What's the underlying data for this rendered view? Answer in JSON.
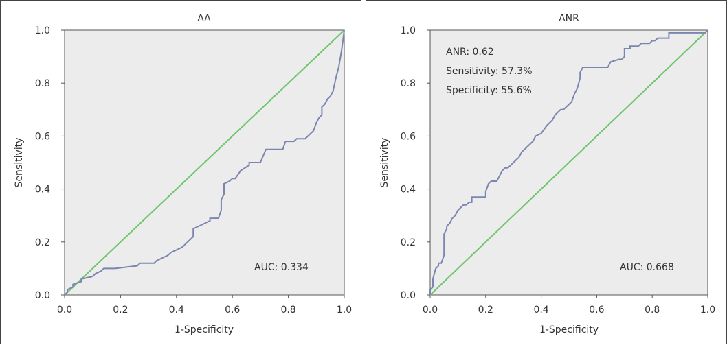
{
  "chart_data": [
    {
      "type": "line",
      "title": "AA",
      "xlabel": "1-Specificity",
      "ylabel": "Sensitivity",
      "xlim": [
        0,
        1
      ],
      "ylim": [
        0,
        1
      ],
      "xticks": [
        "0.0",
        "0.2",
        "0.4",
        "0.6",
        "0.8",
        "1.0"
      ],
      "yticks": [
        "0.0",
        "0.2",
        "0.4",
        "0.6",
        "0.8",
        "1.0"
      ],
      "grid": false,
      "annotations": [
        "AUC: 0.334"
      ],
      "series": [
        {
          "name": "ROC curve",
          "color": "#7a86b0",
          "x": [
            0.0,
            0.01,
            0.01,
            0.03,
            0.03,
            0.06,
            0.06,
            0.1,
            0.11,
            0.13,
            0.14,
            0.17,
            0.18,
            0.26,
            0.27,
            0.32,
            0.33,
            0.35,
            0.37,
            0.38,
            0.4,
            0.42,
            0.43,
            0.44,
            0.45,
            0.46,
            0.46,
            0.48,
            0.52,
            0.52,
            0.55,
            0.56,
            0.56,
            0.57,
            0.57,
            0.59,
            0.6,
            0.61,
            0.63,
            0.66,
            0.66,
            0.7,
            0.72,
            0.72,
            0.78,
            0.79,
            0.82,
            0.83,
            0.86,
            0.87,
            0.88,
            0.89,
            0.9,
            0.91,
            0.92,
            0.92,
            0.93,
            0.94,
            0.95,
            0.96,
            0.97,
            0.97,
            0.98,
            0.99,
            1.0
          ],
          "y": [
            0.0,
            0.01,
            0.02,
            0.03,
            0.04,
            0.05,
            0.06,
            0.07,
            0.08,
            0.09,
            0.1,
            0.1,
            0.1,
            0.11,
            0.12,
            0.12,
            0.13,
            0.14,
            0.15,
            0.16,
            0.17,
            0.18,
            0.19,
            0.2,
            0.21,
            0.22,
            0.25,
            0.26,
            0.28,
            0.29,
            0.29,
            0.32,
            0.36,
            0.38,
            0.42,
            0.43,
            0.44,
            0.44,
            0.47,
            0.49,
            0.5,
            0.5,
            0.55,
            0.55,
            0.55,
            0.58,
            0.58,
            0.59,
            0.59,
            0.6,
            0.61,
            0.62,
            0.65,
            0.67,
            0.68,
            0.71,
            0.72,
            0.74,
            0.75,
            0.77,
            0.82,
            0.82,
            0.86,
            0.92,
            1.0
          ]
        },
        {
          "name": "Reference line",
          "color": "#6cc56c",
          "x": [
            0,
            1
          ],
          "y": [
            0,
            1
          ]
        }
      ]
    },
    {
      "type": "line",
      "title": "ANR",
      "xlabel": "1-Specificity",
      "ylabel": "Sensitivity",
      "xlim": [
        0,
        1
      ],
      "ylim": [
        0,
        1
      ],
      "xticks": [
        "0.0",
        "0.2",
        "0.4",
        "0.6",
        "0.8",
        "1.0"
      ],
      "yticks": [
        "0.0",
        "0.2",
        "0.4",
        "0.6",
        "0.8",
        "1.0"
      ],
      "grid": false,
      "annotations": [
        "ANR: 0.62",
        "Sensitivity: 57.3%",
        "Specificity: 55.6%",
        "AUC: 0.668"
      ],
      "series": [
        {
          "name": "ROC curve",
          "color": "#7a86b0",
          "x": [
            0.0,
            0.0,
            0.01,
            0.01,
            0.02,
            0.03,
            0.03,
            0.04,
            0.05,
            0.05,
            0.06,
            0.06,
            0.07,
            0.08,
            0.09,
            0.1,
            0.11,
            0.12,
            0.13,
            0.14,
            0.15,
            0.15,
            0.2,
            0.2,
            0.21,
            0.22,
            0.24,
            0.25,
            0.26,
            0.27,
            0.28,
            0.3,
            0.31,
            0.32,
            0.33,
            0.34,
            0.36,
            0.37,
            0.38,
            0.4,
            0.42,
            0.42,
            0.44,
            0.45,
            0.46,
            0.47,
            0.48,
            0.5,
            0.51,
            0.52,
            0.53,
            0.54,
            0.54,
            0.55,
            0.56,
            0.64,
            0.65,
            0.68,
            0.69,
            0.7,
            0.7,
            0.71,
            0.72,
            0.72,
            0.75,
            0.76,
            0.78,
            0.79,
            0.8,
            0.81,
            0.82,
            0.86,
            0.86,
            0.99,
            1.0
          ],
          "y": [
            0.0,
            0.02,
            0.03,
            0.06,
            0.1,
            0.11,
            0.12,
            0.12,
            0.15,
            0.23,
            0.25,
            0.26,
            0.27,
            0.29,
            0.3,
            0.32,
            0.33,
            0.34,
            0.34,
            0.35,
            0.35,
            0.37,
            0.37,
            0.39,
            0.42,
            0.43,
            0.43,
            0.45,
            0.47,
            0.48,
            0.48,
            0.5,
            0.51,
            0.52,
            0.54,
            0.55,
            0.57,
            0.58,
            0.6,
            0.61,
            0.64,
            0.64,
            0.66,
            0.68,
            0.69,
            0.7,
            0.7,
            0.72,
            0.73,
            0.76,
            0.78,
            0.82,
            0.84,
            0.86,
            0.86,
            0.86,
            0.88,
            0.89,
            0.89,
            0.9,
            0.93,
            0.93,
            0.93,
            0.94,
            0.94,
            0.95,
            0.95,
            0.95,
            0.96,
            0.96,
            0.97,
            0.97,
            0.99,
            0.99,
            1.0
          ]
        },
        {
          "name": "Reference line",
          "color": "#6cc56c",
          "x": [
            0,
            1
          ],
          "y": [
            0,
            1
          ]
        }
      ]
    }
  ]
}
